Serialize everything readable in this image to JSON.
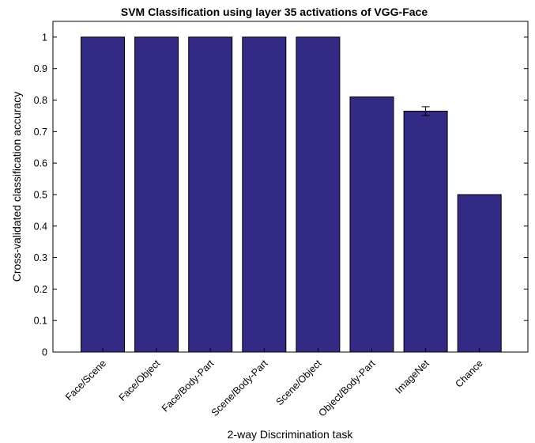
{
  "chart_data": {
    "type": "bar",
    "title": "SVM Classification using layer 35 activations of VGG-Face",
    "xlabel": "2-way Discrimination task",
    "ylabel": "Cross-validated classification accuracy",
    "categories": [
      "Face/Scene",
      "Face/Object",
      "Face/Body-Part",
      "Scene/Body-Part",
      "Scene/Object",
      "Object/Body-Part",
      "ImageNet",
      "Chance"
    ],
    "values": [
      1.0,
      1.0,
      1.0,
      1.0,
      1.0,
      0.81,
      0.765,
      0.5
    ],
    "error": [
      0,
      0,
      0,
      0,
      0,
      0,
      0.014,
      0
    ],
    "ylim": [
      0,
      1.05
    ],
    "yticks": [
      0,
      0.1,
      0.2,
      0.3,
      0.4,
      0.5,
      0.6,
      0.7,
      0.8,
      0.9,
      1
    ],
    "ytick_labels": [
      "0",
      "0.1",
      "0.2",
      "0.3",
      "0.4",
      "0.5",
      "0.6",
      "0.7",
      "0.8",
      "0.9",
      "1"
    ],
    "bar_color": "#332a85",
    "grid": false,
    "legend": "none"
  }
}
